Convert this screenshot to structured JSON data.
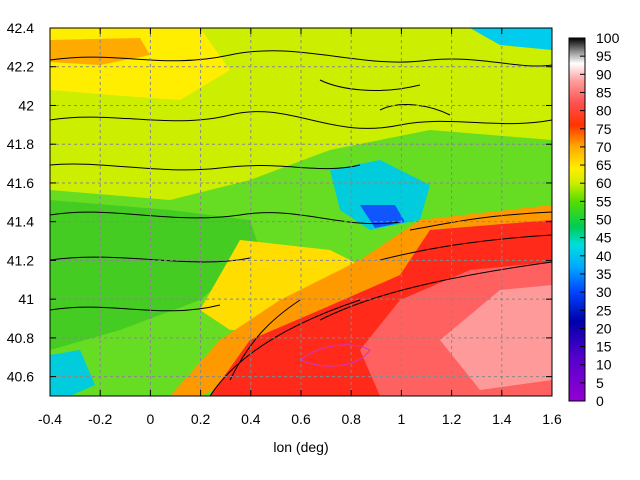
{
  "chart_data": {
    "type": "heatmap",
    "title": "",
    "xlabel": "lon (deg)",
    "ylabel": "",
    "xlim": [
      -0.4,
      1.6
    ],
    "ylim": [
      40.5,
      42.4
    ],
    "xticks": [
      "-0.4",
      "-0.2",
      "0",
      "0.2",
      "0.4",
      "0.6",
      "0.8",
      "1",
      "1.2",
      "1.4",
      "1.6"
    ],
    "yticks": [
      "40.6",
      "40.8",
      "41",
      "41.2",
      "41.4",
      "41.6",
      "41.8",
      "42",
      "42.2",
      "42.4"
    ],
    "grid": true,
    "contours": true,
    "colorbar": {
      "min": 0,
      "max": 100,
      "ticks": [
        "0",
        "5",
        "10",
        "15",
        "20",
        "25",
        "30",
        "35",
        "40",
        "45",
        "50",
        "55",
        "60",
        "65",
        "70",
        "75",
        "80",
        "85",
        "90",
        "95",
        "100"
      ],
      "palette": [
        "#9400d3",
        "#0000aa",
        "#0055ff",
        "#00ccff",
        "#00cc66",
        "#33dd00",
        "#aaee00",
        "#ffee00",
        "#ffaa00",
        "#ff3300",
        "#ff5555",
        "#ff9999",
        "#ffffff",
        "#000000"
      ]
    }
  }
}
